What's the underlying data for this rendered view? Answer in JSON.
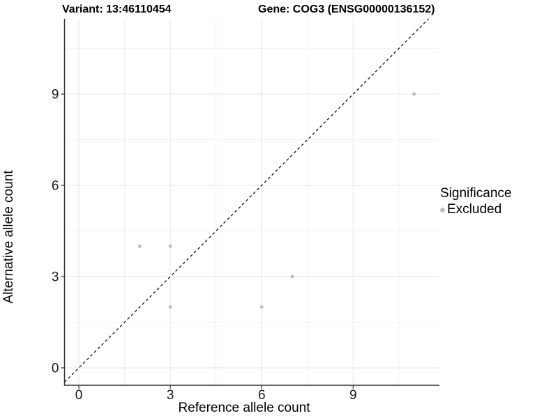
{
  "figure": {
    "title_left": "Variant: 13:46110454",
    "title_right": "Gene: COG3 (ENSG00000136152)"
  },
  "chart_data": {
    "type": "scatter",
    "title": "Variant: 13:46110454 / Gene: COG3 (ENSG00000136152)",
    "xlabel": "Reference allele count",
    "ylabel": "Alternative allele count",
    "xlim": [
      -0.47,
      11.83
    ],
    "ylim": [
      -0.573,
      11.475
    ],
    "x_ticks": [
      0,
      3,
      6,
      9
    ],
    "y_ticks": [
      0,
      3,
      6,
      9
    ],
    "x_minor_ticks": [
      1.5,
      4.5,
      7.5,
      10.5
    ],
    "y_minor_ticks": [
      1.5,
      4.5,
      7.5,
      10.5
    ],
    "grid": true,
    "series": [
      {
        "name": "Excluded",
        "color": "#bebebe",
        "points": [
          [
            2,
            4
          ],
          [
            3,
            4
          ],
          [
            3,
            2
          ],
          [
            6,
            2
          ],
          [
            7,
            3
          ],
          [
            11,
            9
          ]
        ]
      }
    ],
    "reference_line": {
      "kind": "identity",
      "style": "dashed",
      "color": "#000000"
    },
    "legend": {
      "position": "right",
      "title": "Significance",
      "entries": [
        {
          "label": "Excluded",
          "color": "#bebebe"
        }
      ]
    },
    "colors": {
      "background": "#ffffff",
      "major_grid": "#e6e6e6",
      "minor_grid": "#f2f2f2",
      "axis_line": "#333333",
      "tick_text": "#1a1a1a",
      "point": "#bebebe"
    }
  }
}
